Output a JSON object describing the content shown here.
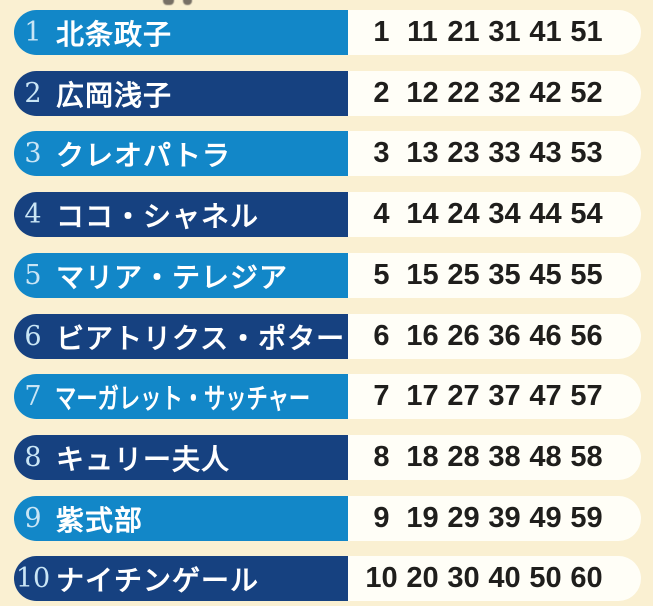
{
  "page": {
    "background_color": "#faf0d2",
    "accent_light_blue": "#1287c8",
    "accent_dark_blue": "#164180",
    "panel_color": "#fffef7",
    "index_color": "#c9e5f5",
    "name_color": "#ffffff",
    "number_color": "#1f1e1c"
  },
  "rows": [
    {
      "index": "1",
      "name": "北条政子",
      "variant": "light",
      "numbers": [
        "1",
        "11",
        "21",
        "31",
        "41",
        "51"
      ]
    },
    {
      "index": "2",
      "name": "広岡浅子",
      "variant": "dark",
      "numbers": [
        "2",
        "12",
        "22",
        "32",
        "42",
        "52"
      ]
    },
    {
      "index": "3",
      "name": "クレオパトラ",
      "variant": "light",
      "numbers": [
        "3",
        "13",
        "23",
        "33",
        "43",
        "53"
      ]
    },
    {
      "index": "4",
      "name": "ココ・シャネル",
      "variant": "dark",
      "numbers": [
        "4",
        "14",
        "24",
        "34",
        "44",
        "54"
      ]
    },
    {
      "index": "5",
      "name": "マリア・テレジア",
      "variant": "light",
      "numbers": [
        "5",
        "15",
        "25",
        "35",
        "45",
        "55"
      ]
    },
    {
      "index": "6",
      "name": "ビアトリクス・ポター",
      "variant": "dark",
      "numbers": [
        "6",
        "16",
        "26",
        "36",
        "46",
        "56"
      ]
    },
    {
      "index": "7",
      "name": "マーガレット・サッチャー",
      "variant": "light",
      "numbers": [
        "7",
        "17",
        "27",
        "37",
        "47",
        "57"
      ]
    },
    {
      "index": "8",
      "name": "キュリー夫人",
      "variant": "dark",
      "numbers": [
        "8",
        "18",
        "28",
        "38",
        "48",
        "58"
      ]
    },
    {
      "index": "9",
      "name": "紫式部",
      "variant": "light",
      "numbers": [
        "9",
        "19",
        "29",
        "39",
        "49",
        "59"
      ]
    },
    {
      "index": "10",
      "name": "ナイチンゲール",
      "variant": "dark",
      "numbers": [
        "10",
        "20",
        "30",
        "40",
        "50",
        "60"
      ]
    }
  ]
}
